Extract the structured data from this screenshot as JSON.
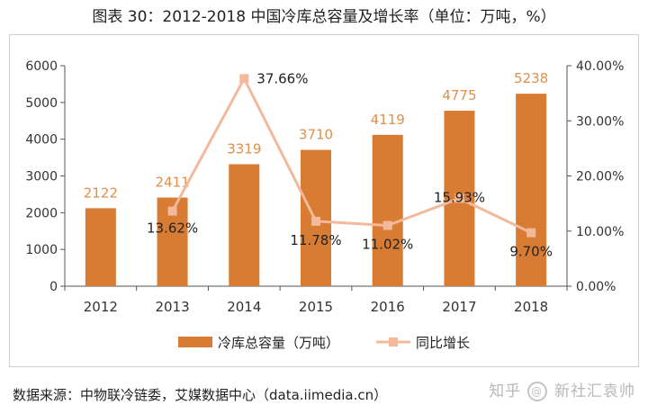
{
  "title": "图表 30：2012-2018 中国冷库总容量及增长率（单位：万吨，%）",
  "source": "数据来源：中物联冷链委，艾媒数据中心（data.iimedia.cn）",
  "watermark": {
    "prefix": "知乎",
    "handle": "@新社汇袁帅"
  },
  "colors": {
    "bar": "#d97c33",
    "bar_label": "#e0904a",
    "line": "#f4b89a",
    "axis": "#555555",
    "grid": "#cfcfcf"
  },
  "chart_data": {
    "type": "bar+line",
    "categories": [
      "2012",
      "2013",
      "2014",
      "2015",
      "2016",
      "2017",
      "2018"
    ],
    "series": [
      {
        "name": "冷库总容量（万吨）",
        "type": "bar",
        "axis": "left",
        "values": [
          2122,
          2411,
          3319,
          3710,
          4119,
          4775,
          5238
        ],
        "labels": [
          "2122",
          "2411",
          "3319",
          "3710",
          "4119",
          "4775",
          "5238"
        ]
      },
      {
        "name": "同比增长",
        "type": "line",
        "axis": "right",
        "x": [
          "2013",
          "2014",
          "2015",
          "2016",
          "2017",
          "2018"
        ],
        "values": [
          13.62,
          37.66,
          11.78,
          11.02,
          15.93,
          9.7
        ],
        "labels": [
          "13.62%",
          "37.66%",
          "11.78%",
          "11.02%",
          "15.93%",
          "9.70%"
        ]
      }
    ],
    "y_left": {
      "min": 0,
      "max": 6000,
      "ticks": [
        "0",
        "1000",
        "2000",
        "3000",
        "4000",
        "5000",
        "6000"
      ]
    },
    "y_right": {
      "min": 0,
      "max": 40,
      "ticks": [
        "0.00%",
        "10.00%",
        "20.00%",
        "30.00%",
        "40.00%"
      ]
    },
    "legend": [
      "冷库总容量（万吨）",
      "同比增长"
    ],
    "legend_position": "bottom"
  }
}
